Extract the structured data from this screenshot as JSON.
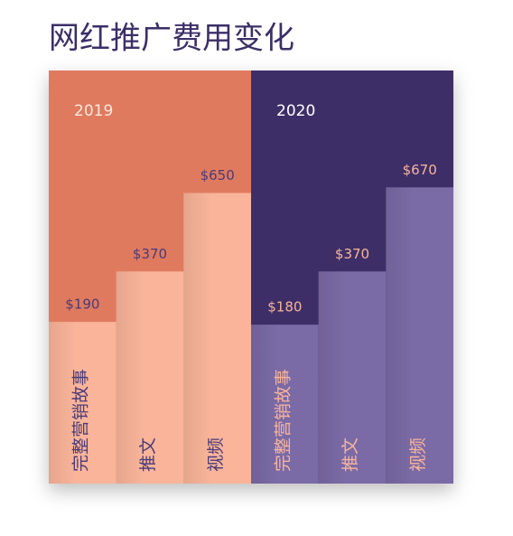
{
  "title": "网红推广费用变化",
  "chart_data": [
    {
      "type": "bar",
      "title": "2019",
      "categories": [
        "完整营销故事",
        "推文",
        "视频"
      ],
      "values": [
        190,
        370,
        650
      ],
      "value_labels": [
        "$190",
        "$370",
        "$650"
      ],
      "color": "#f9b49a",
      "background": "#e07a5f",
      "title_color": "#fde8de",
      "value_label_color": "#4a3a78",
      "category_color": "#4a3a78"
    },
    {
      "type": "bar",
      "title": "2020",
      "categories": [
        "完整营销故事",
        "推文",
        "视频"
      ],
      "values": [
        180,
        370,
        670
      ],
      "value_labels": [
        "$180",
        "$370",
        "$670"
      ],
      "color": "#7a6aa6",
      "background": "#3c2f68",
      "title_color": "#ffffff",
      "value_label_color": "#f9b49a",
      "category_color": "#f9b49a"
    }
  ]
}
